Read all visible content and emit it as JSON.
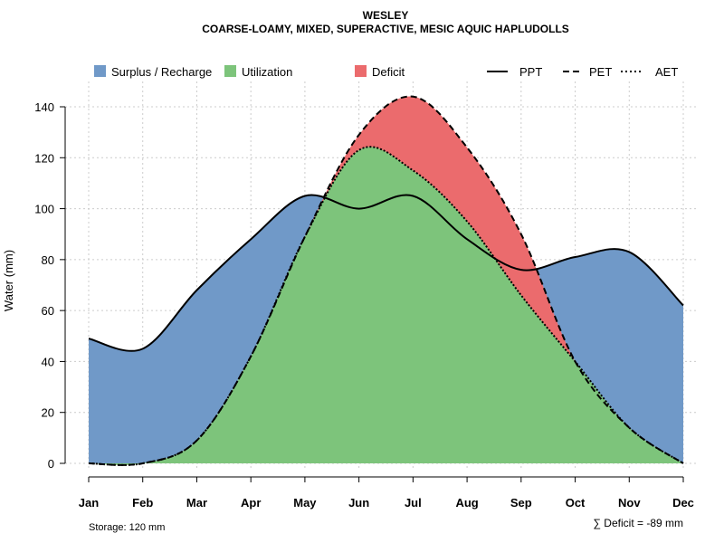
{
  "chart_data": {
    "type": "area",
    "title": "WESLEY",
    "subtitle": "COARSE-LOAMY, MIXED, SUPERACTIVE, MESIC AQUIC HAPLUDOLLS",
    "xlabel": "",
    "ylabel": "Water (mm)",
    "ylim": [
      0,
      150
    ],
    "yticks": [
      0,
      20,
      40,
      60,
      80,
      100,
      120,
      140
    ],
    "categories": [
      "Jan",
      "Feb",
      "Mar",
      "Apr",
      "May",
      "Jun",
      "Jul",
      "Aug",
      "Sep",
      "Oct",
      "Nov",
      "Dec"
    ],
    "series": [
      {
        "name": "PPT",
        "style": "solid",
        "values": [
          49,
          45,
          68,
          88,
          105,
          100,
          105,
          88,
          76,
          81,
          83,
          62
        ]
      },
      {
        "name": "PET",
        "style": "dashed",
        "values": [
          0,
          0,
          9,
          42,
          89,
          129,
          144,
          124,
          90,
          40,
          14,
          0
        ]
      },
      {
        "name": "AET",
        "style": "dotted",
        "values": [
          0,
          0,
          9,
          42,
          89,
          123,
          115,
          95,
          66,
          40,
          14,
          0
        ]
      }
    ],
    "areas": [
      {
        "name": "Surplus / Recharge",
        "color": "#7099C8"
      },
      {
        "name": "Utilization",
        "color": "#7DC47B"
      },
      {
        "name": "Deficit",
        "color": "#EB6B6D"
      }
    ],
    "grid": true,
    "legend": "top",
    "annotations": {
      "storage": "Storage: 120 mm",
      "deficit": "∑ Deficit = -89 mm"
    }
  }
}
